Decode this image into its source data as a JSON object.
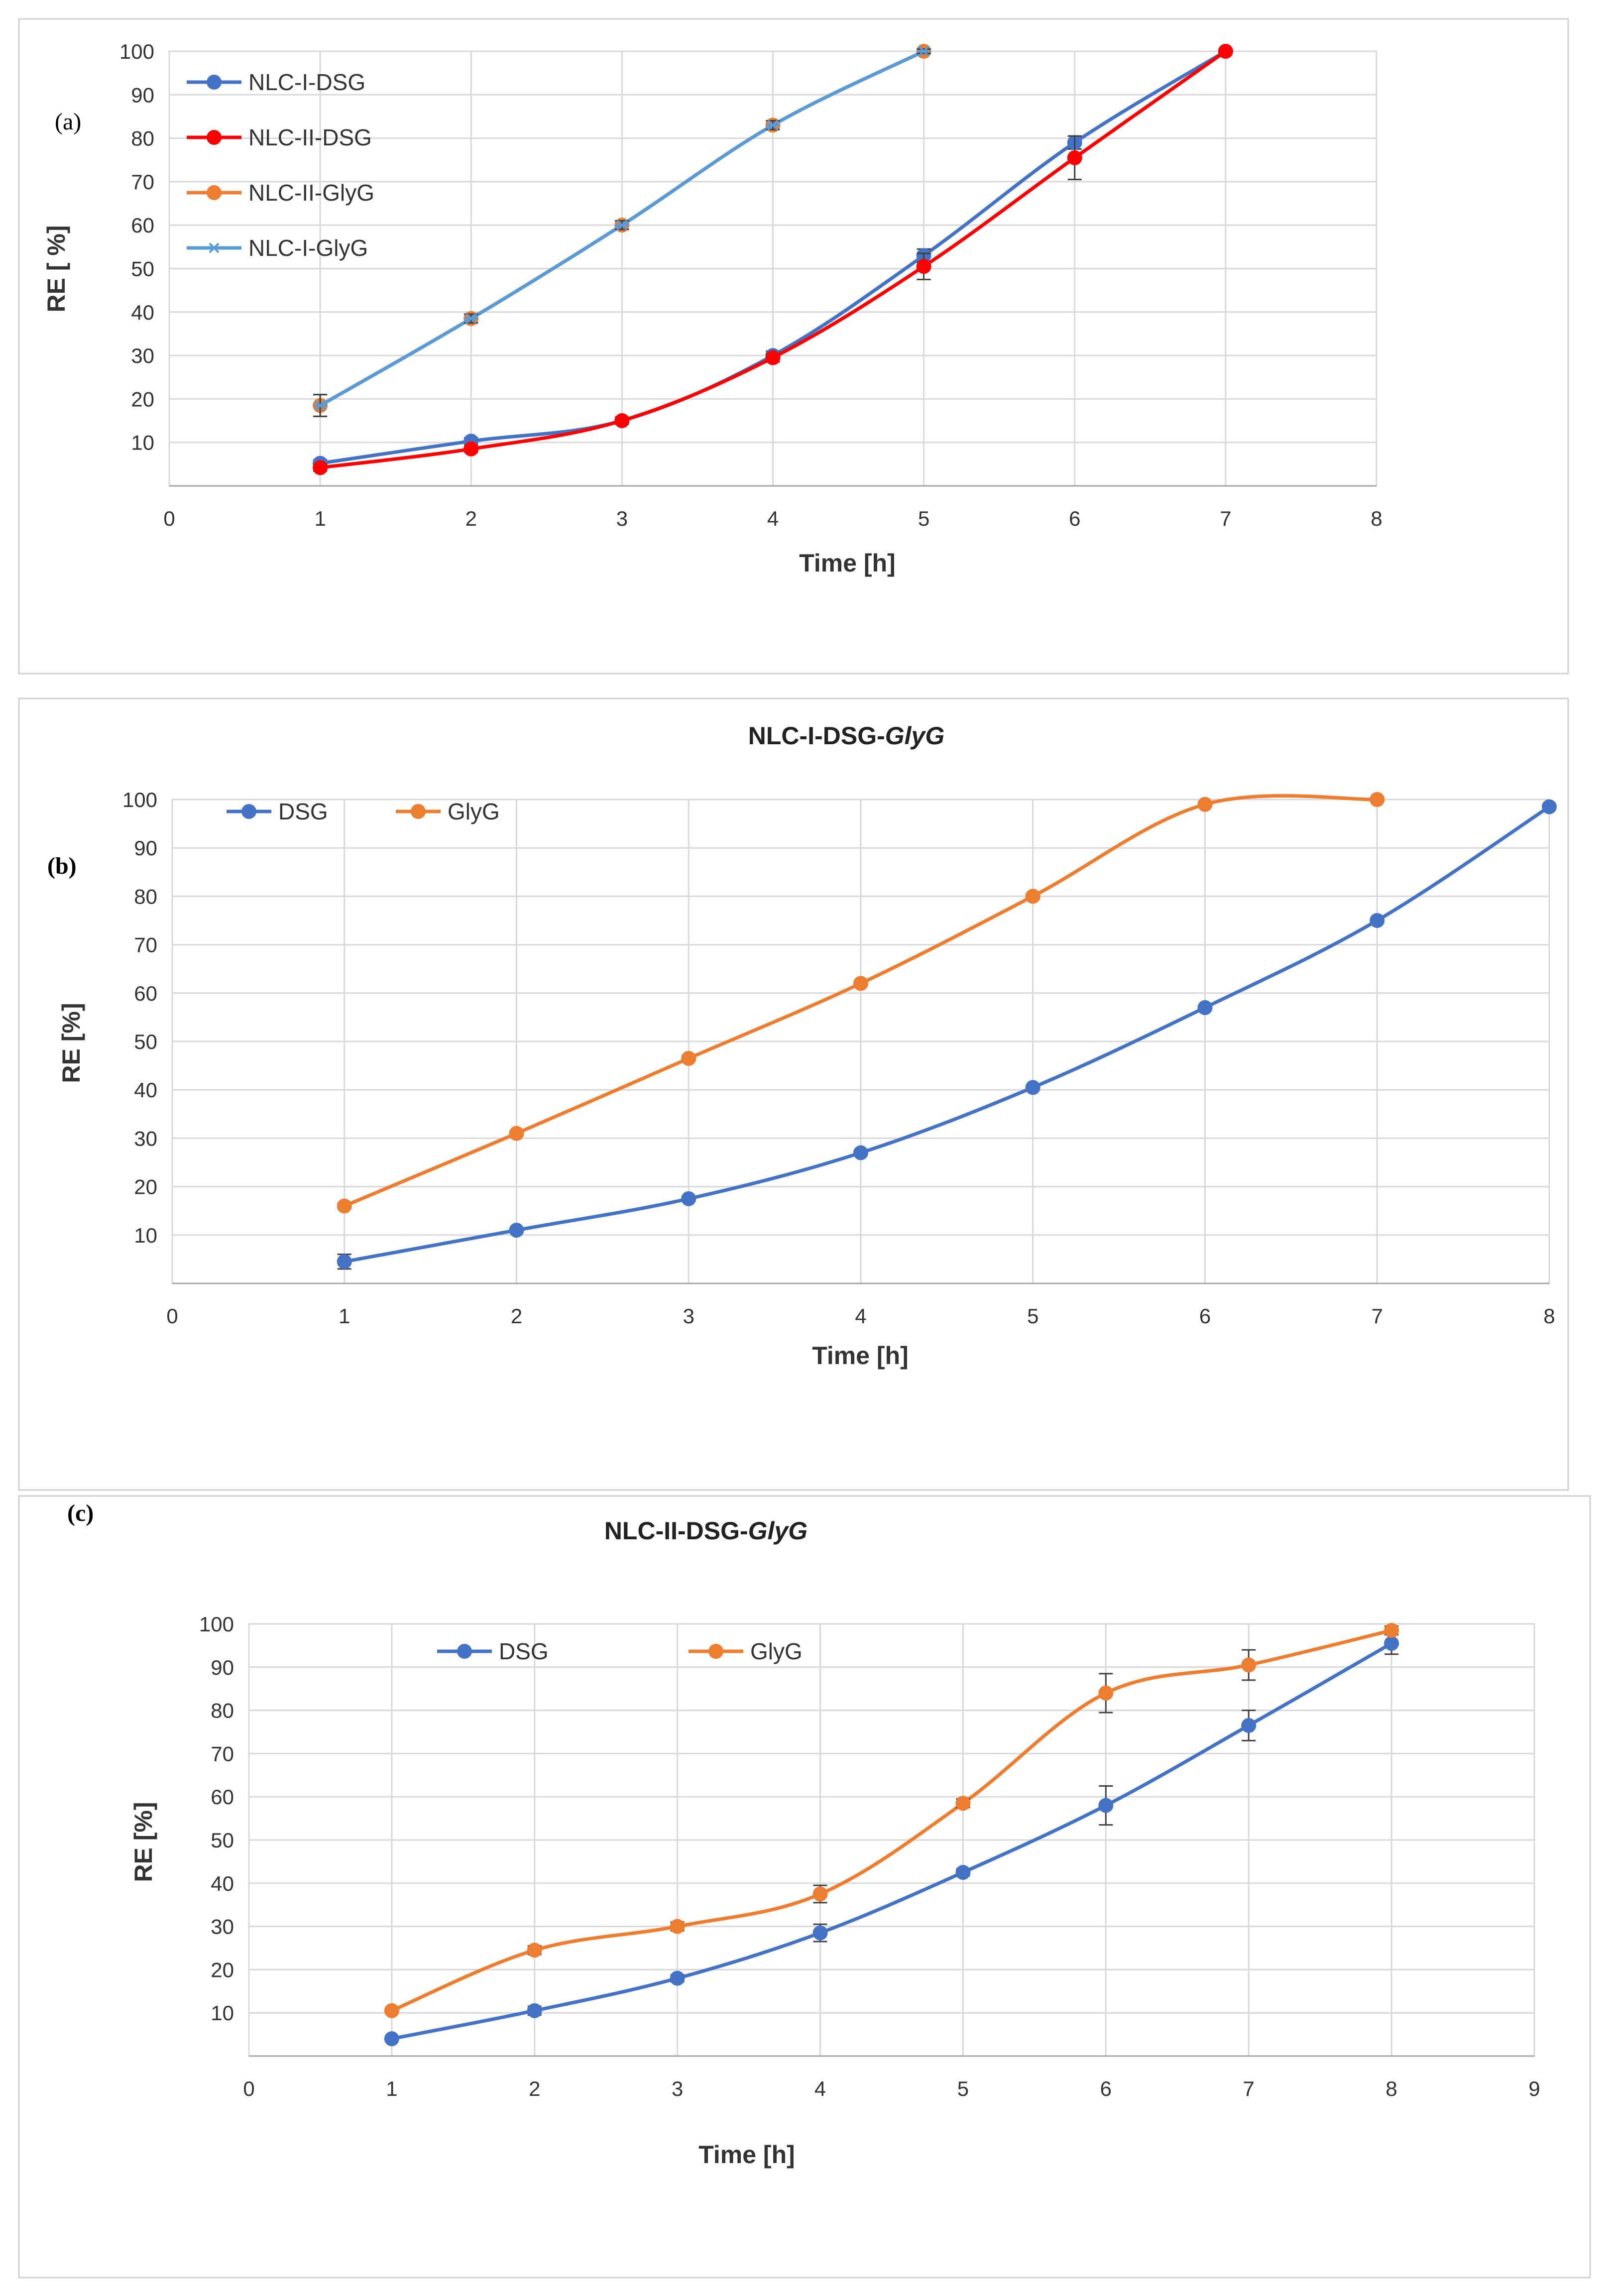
{
  "chart_data": [
    {
      "type": "line",
      "panel": "(a)",
      "title": "",
      "xlabel": "Time [h]",
      "ylabel": "RE [ %]",
      "xlim": [
        0,
        8
      ],
      "ylim": [
        0,
        100
      ],
      "xticks": [
        "0",
        "1",
        "2",
        "3",
        "4",
        "5",
        "6",
        "7",
        "8"
      ],
      "yticks": [
        "10",
        "20",
        "30",
        "40",
        "50",
        "60",
        "70",
        "80",
        "90",
        "100"
      ],
      "legend_position": "top-left",
      "series": [
        {
          "name": "NLC-I-DSG",
          "color": "#4472C4",
          "marker": "circle",
          "x": [
            1,
            2,
            3,
            4,
            5,
            6,
            7
          ],
          "values": [
            5.2,
            10.3,
            15,
            30,
            53,
            79,
            100
          ],
          "errors": [
            0.8,
            0.8,
            0.8,
            1,
            1.5,
            1.5,
            0.5
          ]
        },
        {
          "name": "NLC-II-DSG",
          "color": "#FF0000",
          "marker": "circle",
          "x": [
            1,
            2,
            3,
            4,
            5,
            6,
            7
          ],
          "values": [
            4.2,
            8.5,
            15,
            29.5,
            50.5,
            75.5,
            100
          ],
          "errors": [
            0.8,
            0.8,
            0.8,
            1,
            3,
            5,
            0.5
          ]
        },
        {
          "name": "NLC-II-GlyG",
          "color": "#ED7D31",
          "marker": "circle",
          "x": [
            1,
            2,
            3,
            4,
            5
          ],
          "values": [
            18.5,
            38.5,
            60,
            83,
            100
          ],
          "errors": [
            2.5,
            1,
            1,
            1,
            0.5
          ]
        },
        {
          "name": "NLC-I-GlyG",
          "color": "#5B9BD5",
          "marker": "asterisk",
          "x": [
            1,
            2,
            3,
            4,
            5
          ],
          "values": [
            18.5,
            38.5,
            60,
            83,
            100
          ],
          "errors": [
            2.5,
            1,
            1,
            1,
            0.5
          ]
        }
      ]
    },
    {
      "type": "line",
      "panel": "(b)",
      "title": "NLC-I-DSG-",
      "title_italic": "GlyG",
      "xlabel": "Time [h]",
      "ylabel": "RE [%]",
      "xlim": [
        0,
        8
      ],
      "ylim": [
        0,
        100
      ],
      "xticks": [
        "0",
        "1",
        "2",
        "3",
        "4",
        "5",
        "6",
        "7",
        "8"
      ],
      "yticks": [
        "10",
        "20",
        "30",
        "40",
        "50",
        "60",
        "70",
        "80",
        "90",
        "100"
      ],
      "legend_position": "top-left",
      "series": [
        {
          "name": "DSG",
          "color": "#4472C4",
          "marker": "circle",
          "x": [
            1,
            2,
            3,
            4,
            5,
            6,
            7,
            8
          ],
          "values": [
            4.5,
            11,
            17.5,
            27,
            40.5,
            57,
            75,
            98.5
          ],
          "errors": [
            1.5,
            0.5,
            0.5,
            0.5,
            0.5,
            0.5,
            0.5,
            0.5
          ]
        },
        {
          "name": "GlyG",
          "color": "#ED7D31",
          "marker": "circle",
          "x": [
            1,
            2,
            3,
            4,
            5,
            6,
            7
          ],
          "values": [
            16,
            31,
            46.5,
            62,
            80,
            99,
            100
          ],
          "errors": [
            0.5,
            0.5,
            0.5,
            0.5,
            0.5,
            0.5,
            0.5
          ]
        }
      ]
    },
    {
      "type": "line",
      "panel": "(c)",
      "title": "NLC-II-DSG-",
      "title_italic": "GlyG",
      "xlabel": "Time [h]",
      "ylabel": "RE [%]",
      "xlim": [
        0,
        9
      ],
      "ylim": [
        0,
        100
      ],
      "xticks": [
        "0",
        "1",
        "2",
        "3",
        "4",
        "5",
        "6",
        "7",
        "8",
        "9"
      ],
      "yticks": [
        "10",
        "20",
        "30",
        "40",
        "50",
        "60",
        "70",
        "80",
        "90",
        "100"
      ],
      "legend_position": "top-center",
      "series": [
        {
          "name": "DSG",
          "color": "#4472C4",
          "marker": "circle",
          "x": [
            1,
            2,
            3,
            4,
            5,
            6,
            7,
            8
          ],
          "values": [
            4,
            10.5,
            18,
            28.5,
            42.5,
            58,
            76.5,
            95.5
          ],
          "errors": [
            0.5,
            1,
            0.8,
            2,
            0.8,
            4.5,
            3.5,
            2.5
          ]
        },
        {
          "name": "GlyG",
          "color": "#ED7D31",
          "marker": "circle",
          "x": [
            1,
            2,
            3,
            4,
            5,
            6,
            7,
            8
          ],
          "values": [
            10.5,
            24.5,
            30,
            37.5,
            58.5,
            84,
            90.5,
            98.5
          ],
          "errors": [
            0.5,
            1,
            1,
            2,
            1,
            4.5,
            3.5,
            1
          ]
        }
      ]
    }
  ]
}
